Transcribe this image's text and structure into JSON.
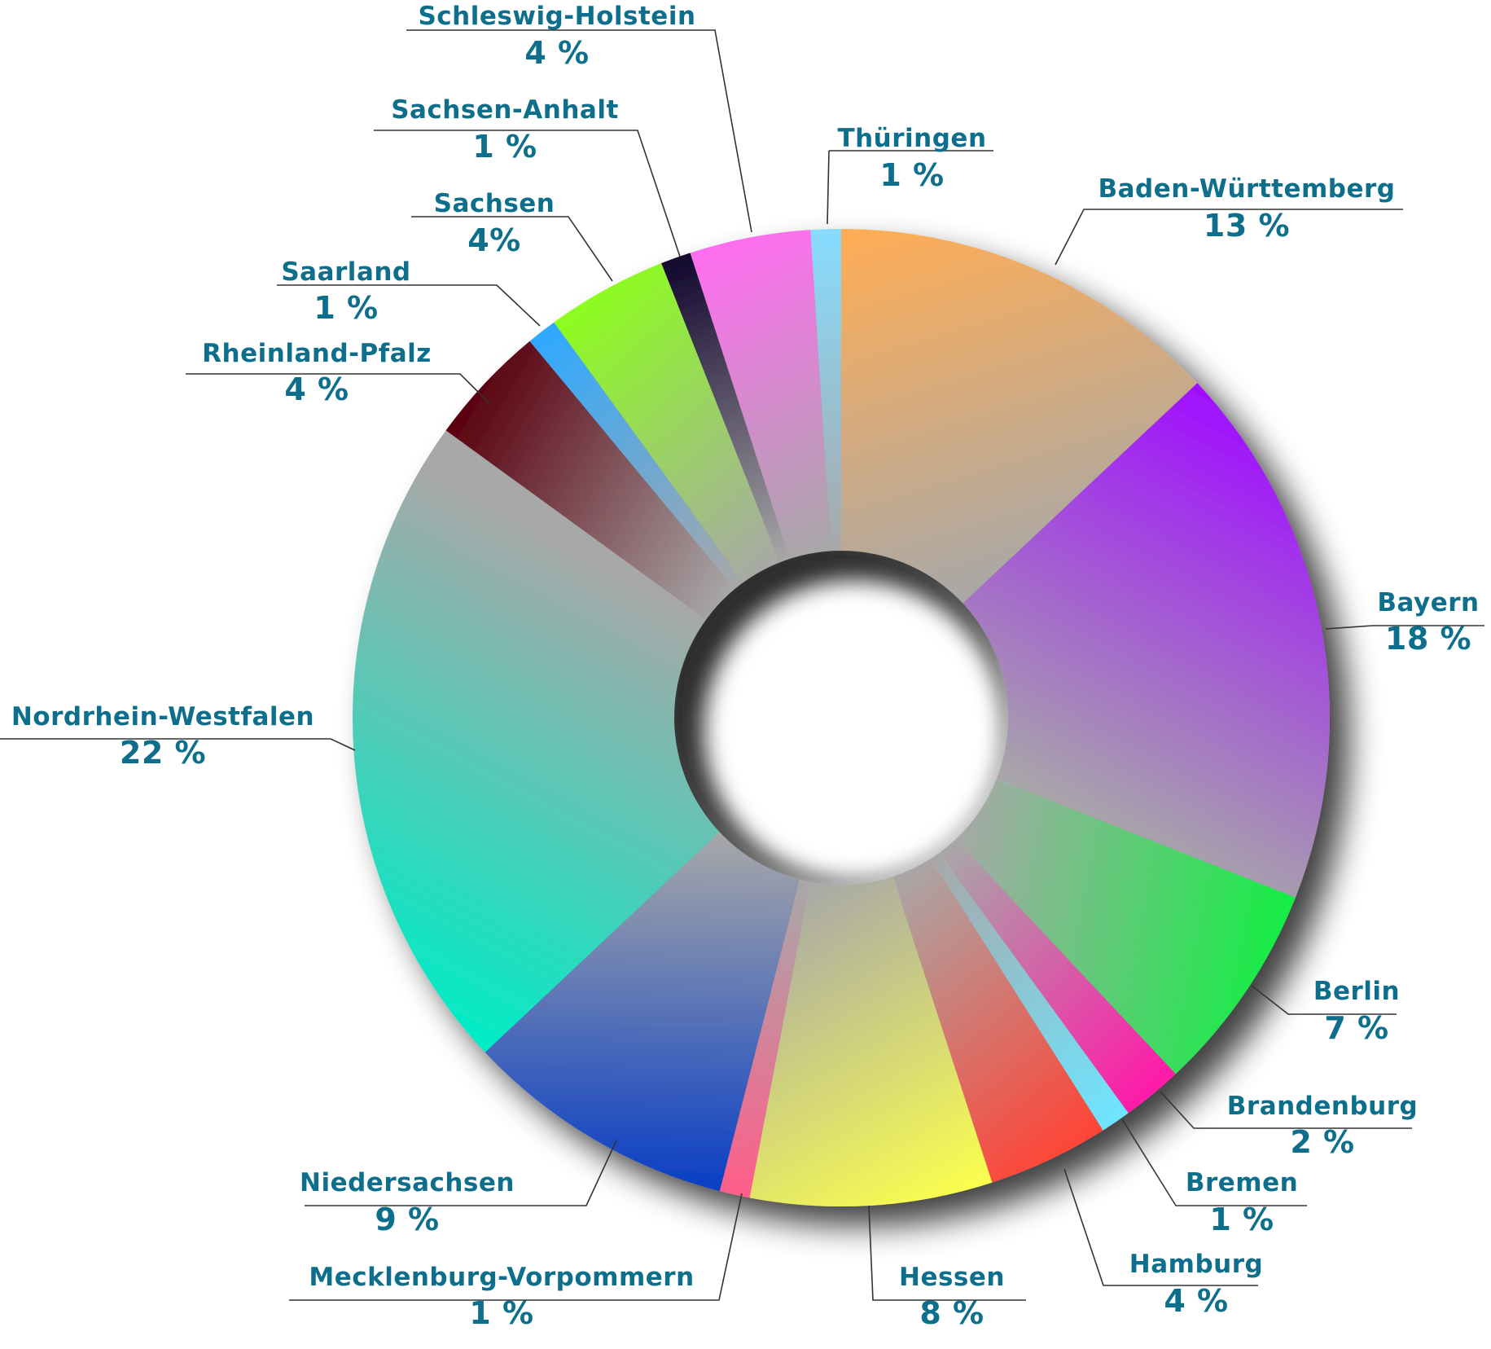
{
  "chart_data": {
    "type": "pie",
    "style": "donut",
    "label_color": "#0e6f8c",
    "leader_color": "#333333",
    "slices": [
      {
        "name": "Baden-Württemberg",
        "value": 13,
        "pct_label": "13 %",
        "color_start": "#ffad55",
        "color_end": "#a8a8a8"
      },
      {
        "name": "Bayern",
        "value": 18,
        "pct_label": "18 %",
        "color_start": "#a00fff",
        "color_end": "#a8a8a8"
      },
      {
        "name": "Berlin",
        "value": 7,
        "pct_label": "7 %",
        "color_start": "#15ee45",
        "color_end": "#a8a8a8"
      },
      {
        "name": "Brandenburg",
        "value": 2,
        "pct_label": "2 %",
        "color_start": "#ff1aa8",
        "color_end": "#a8a8a8"
      },
      {
        "name": "Bremen",
        "value": 1,
        "pct_label": "1 %",
        "color_start": "#6ee5ff",
        "color_end": "#a8a8a8"
      },
      {
        "name": "Hamburg",
        "value": 4,
        "pct_label": "4 %",
        "color_start": "#ff4436",
        "color_end": "#a8a8a8"
      },
      {
        "name": "Hessen",
        "value": 8,
        "pct_label": "8 %",
        "color_start": "#fbff4d",
        "color_end": "#a8a8a8"
      },
      {
        "name": "Mecklenburg-Vorpommern",
        "value": 1,
        "pct_label": "1 %",
        "color_start": "#ff5e8b",
        "color_end": "#a8a8a8"
      },
      {
        "name": "Niedersachsen",
        "value": 9,
        "pct_label": "9 %",
        "color_start": "#0a3fc5",
        "color_end": "#a8a8a8"
      },
      {
        "name": "Nordrhein-Westfalen",
        "value": 22,
        "pct_label": "22 %",
        "color_start": "#00ecc6",
        "color_end": "#a8a8a8"
      },
      {
        "name": "Rheinland-Pfalz",
        "value": 4,
        "pct_label": "4 %",
        "color_start": "#5a000e",
        "color_end": "#a8a8a8"
      },
      {
        "name": "Saarland",
        "value": 1,
        "pct_label": "1 %",
        "color_start": "#2ea9ff",
        "color_end": "#a8a8a8"
      },
      {
        "name": "Sachsen",
        "value": 4,
        "pct_label": "4%",
        "color_start": "#8dfd1e",
        "color_end": "#a8a8a8"
      },
      {
        "name": "Sachsen-Anhalt",
        "value": 1,
        "pct_label": "1 %",
        "color_start": "#12062e",
        "color_end": "#a8a8a8"
      },
      {
        "name": "Schleswig-Holstein",
        "value": 4,
        "pct_label": "4 %",
        "color_start": "#ff6df0",
        "color_end": "#a8a8a8"
      },
      {
        "name": "Thüringen",
        "value": 1,
        "pct_label": "1 %",
        "color_start": "#87dcff",
        "color_end": "#a8a8a8"
      }
    ]
  }
}
